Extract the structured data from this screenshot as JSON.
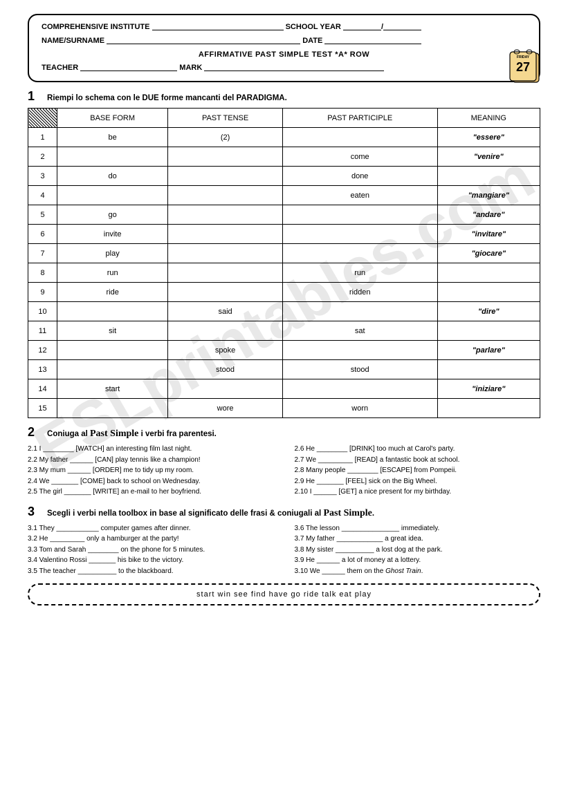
{
  "header": {
    "institute_label": "COMPREHENSIVE INSTITUTE",
    "school_year_label": "SCHOOL YEAR",
    "name_label": "NAME/SURNAME",
    "date_label": "DATE",
    "title": "AFFIRMATIVE PAST SIMPLE TEST *A* ROW",
    "teacher_label": "TEACHER",
    "mark_label": "MARK",
    "calendar_day": "27",
    "calendar_weekday": "FRIDAY"
  },
  "section1": {
    "number": "1",
    "instruction": "Riempi lo schema con le DUE forme mancanti del PARADIGMA.",
    "columns": [
      "BASE FORM",
      "PAST TENSE",
      "PAST PARTICIPLE",
      "MEANING"
    ],
    "rows": [
      {
        "n": "1",
        "base": "be",
        "past": "(2)",
        "pp": "",
        "meaning": "\"essere\""
      },
      {
        "n": "2",
        "base": "",
        "past": "",
        "pp": "come",
        "meaning": "\"venire\""
      },
      {
        "n": "3",
        "base": "do",
        "past": "",
        "pp": "done",
        "meaning": ""
      },
      {
        "n": "4",
        "base": "",
        "past": "",
        "pp": "eaten",
        "meaning": "\"mangiare\""
      },
      {
        "n": "5",
        "base": "go",
        "past": "",
        "pp": "",
        "meaning": "\"andare\""
      },
      {
        "n": "6",
        "base": "invite",
        "past": "",
        "pp": "",
        "meaning": "\"invitare\""
      },
      {
        "n": "7",
        "base": "play",
        "past": "",
        "pp": "",
        "meaning": "\"giocare\""
      },
      {
        "n": "8",
        "base": "run",
        "past": "",
        "pp": "run",
        "meaning": ""
      },
      {
        "n": "9",
        "base": "ride",
        "past": "",
        "pp": "ridden",
        "meaning": ""
      },
      {
        "n": "10",
        "base": "",
        "past": "said",
        "pp": "",
        "meaning": "\"dire\""
      },
      {
        "n": "11",
        "base": "sit",
        "past": "",
        "pp": "sat",
        "meaning": ""
      },
      {
        "n": "12",
        "base": "",
        "past": "spoke",
        "pp": "",
        "meaning": "\"parlare\""
      },
      {
        "n": "13",
        "base": "",
        "past": "stood",
        "pp": "stood",
        "meaning": ""
      },
      {
        "n": "14",
        "base": "start",
        "past": "",
        "pp": "",
        "meaning": "\"iniziare\""
      },
      {
        "n": "15",
        "base": "",
        "past": "wore",
        "pp": "worn",
        "meaning": ""
      }
    ]
  },
  "section2": {
    "number": "2",
    "instruction_prefix": "Coniuga al ",
    "instruction_cursive": "Past Simple",
    "instruction_suffix": "  i verbi fra parentesi.",
    "left": [
      "2.1  I ________ [WATCH] an interesting film last night.",
      "2.2  My father ______ [CAN] play tennis like a champion!",
      "2.3  My mum ______ [ORDER] me to tidy up my room.",
      "2.4  We _______ [COME] back to school on Wednesday.",
      "2.5 The girl _______ [WRITE] an e-mail to her boyfriend."
    ],
    "right": [
      "2.6   He ________ [DRINK] too much at Carol's party.",
      "2.7   We _________ [READ] a fantastic book at school.",
      "2.8   Many people ________ [ESCAPE] from Pompeii.",
      "2.9   He _______ [FEEL] sick on the Big Wheel.",
      "2.10 I ______ [GET] a nice present for my birthday."
    ]
  },
  "section3": {
    "number": "3",
    "instruction_prefix": "Scegli i verbi nella toolbox in base al significato delle frasi & coniugali al ",
    "instruction_cursive": "Past Simple",
    "instruction_suffix": ".",
    "left": [
      "3.1  They ___________ computer games after dinner.",
      "3.2  He _________ only a hamburger at the party!",
      "3.3  Tom and Sarah ________ on the phone for 5 minutes.",
      "3.4  Valentino Rossi _______ his bike to the victory.",
      "3.5  The teacher __________ to the blackboard."
    ],
    "right_items": [
      {
        "pre": "3.6   The lesson _______________ immediately.",
        "ghost": ""
      },
      {
        "pre": "3.7   My father ____________ a great idea.",
        "ghost": ""
      },
      {
        "pre": "3.8   My sister __________ a lost dog at the park.",
        "ghost": ""
      },
      {
        "pre": "3.9   He ______ a lot of money at a lottery.",
        "ghost": ""
      },
      {
        "pre": "3.10 We ______ them on the ",
        "ghost": "Ghost Train",
        "post": "."
      }
    ],
    "toolbox": "start   win   see   find   have   go   ride   talk   eat   play"
  },
  "watermark_text": "ESLprintables.com"
}
